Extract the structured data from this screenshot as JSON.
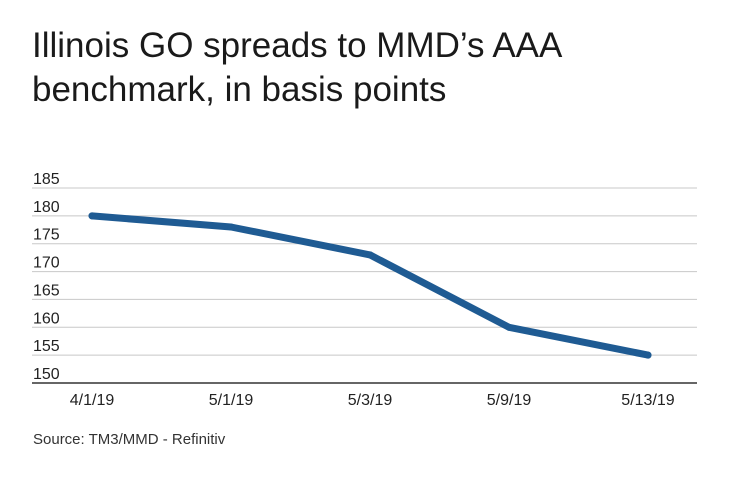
{
  "title": "Illinois GO spreads to MMD’s AAA benchmark, in basis points",
  "source": "Source: TM3/MMD - Refinitiv",
  "colors": {
    "line": "#1f5b93",
    "grid": "#c8c8c8",
    "axis": "#333333"
  },
  "chart_data": {
    "type": "line",
    "title": "Illinois GO spreads to MMD’s AAA benchmark, in basis points",
    "xlabel": "",
    "ylabel": "",
    "categories": [
      "4/1/19",
      "5/1/19",
      "5/3/19",
      "5/9/19",
      "5/13/19"
    ],
    "series": [
      {
        "values": [
          180,
          178,
          173,
          160,
          155
        ]
      }
    ],
    "ylim": [
      150,
      185
    ],
    "yticks": [
      185,
      180,
      175,
      170,
      165,
      160,
      155,
      150
    ],
    "grid": true,
    "legend": "none"
  }
}
